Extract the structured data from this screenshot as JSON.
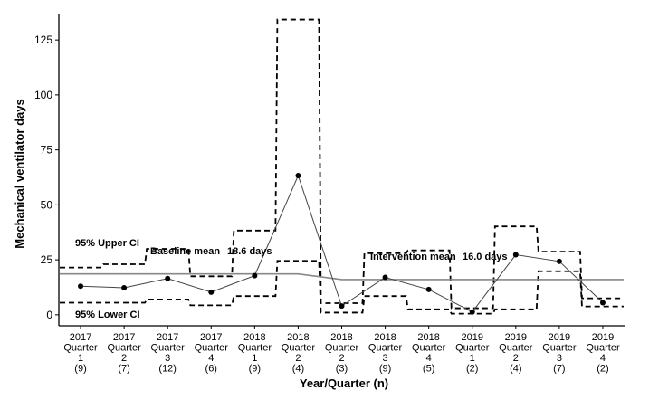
{
  "chart_data": {
    "type": "line",
    "xlabel": "Year/Quarter (n)",
    "ylabel": "Mechanical ventilator days",
    "ylim": [
      -5,
      137
    ],
    "yticks": [
      0,
      25,
      50,
      75,
      100,
      125
    ],
    "grid": false,
    "categories": [
      {
        "year": "2017",
        "quarter": "Quarter",
        "num": "1",
        "n": "(9)"
      },
      {
        "year": "2017",
        "quarter": "Quarter",
        "num": "2",
        "n": "(7)"
      },
      {
        "year": "2017",
        "quarter": "Quarter",
        "num": "3",
        "n": "(12)"
      },
      {
        "year": "2017",
        "quarter": "Quarter",
        "num": "4",
        "n": "(6)"
      },
      {
        "year": "2018",
        "quarter": "Quarter",
        "num": "1",
        "n": "(9)"
      },
      {
        "year": "2018",
        "quarter": "Quarter",
        "num": "2",
        "n": "(4)"
      },
      {
        "year": "2018",
        "quarter": "Quarter",
        "num": "2",
        "n": "(3)"
      },
      {
        "year": "2018",
        "quarter": "Quarter",
        "num": "3",
        "n": "(9)"
      },
      {
        "year": "2018",
        "quarter": "Quarter",
        "num": "4",
        "n": "(5)"
      },
      {
        "year": "2019",
        "quarter": "Quarter",
        "num": "1",
        "n": "(2)"
      },
      {
        "year": "2019",
        "quarter": "Quarter",
        "num": "2",
        "n": "(4)"
      },
      {
        "year": "2019",
        "quarter": "Quarter",
        "num": "3",
        "n": "(7)"
      },
      {
        "year": "2019",
        "quarter": "Quarter",
        "num": "4",
        "n": "(2)"
      }
    ],
    "values": [
      13,
      12.3,
      16.5,
      10.3,
      17.8,
      63.3,
      4,
      17,
      11.5,
      1.3,
      27.3,
      24.3,
      5.5
    ],
    "ci_upper": [
      21.5,
      23,
      30,
      17.5,
      38.3,
      134.3,
      5.3,
      28,
      29.3,
      3,
      40.2,
      28.7,
      7.5
    ],
    "ci_lower": [
      5.5,
      5.5,
      7,
      4.3,
      8.5,
      24.5,
      1,
      8.5,
      2.5,
      0.5,
      2.5,
      19.8,
      3.8
    ],
    "mean_line": [
      18.6,
      18.6,
      18.6,
      18.6,
      18.6,
      18.6,
      16.0,
      16.0,
      16.0,
      16.0,
      16.0,
      16.0,
      16.0
    ],
    "annotations": {
      "upper_ci": "95% Upper CI",
      "lower_ci": "95% Lower CI",
      "baseline_mean": "Baseline mean",
      "baseline_value": "18.6 days",
      "intervention_mean": "Intervention mean",
      "intervention_value": "16.0 days"
    },
    "colors": {
      "line": "#444444",
      "point": "#000000",
      "mean": "#888888",
      "ci": "#000000"
    }
  }
}
